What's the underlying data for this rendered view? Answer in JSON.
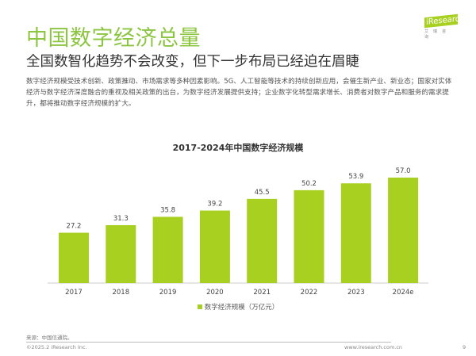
{
  "header": {
    "title": "中国数字经济总量",
    "subtitle": "全国数智化趋势不会改变，但下一步布局已经迫在眉睫",
    "description": "数字经济规模受技术创新、政策推动、市场需求等多种因素影响。5G、人工智能等技术的持续创新应用，会催生新产业、新业态；国家对实体经济与数字经济深度融合的重视及相关政策的出台，为数字经济发展提供支持；企业数字化转型需求增长、消费者对数字产品和服务的需求提升，都将推动数字经济规模的扩大。"
  },
  "logo": {
    "text": "iResearch",
    "cn": "艾瑞咨询"
  },
  "chart_data": {
    "type": "bar",
    "title": "2017-2024年中国数字经济规模",
    "categories": [
      "2017",
      "2018",
      "2019",
      "2020",
      "2021",
      "2022",
      "2023",
      "2024e"
    ],
    "series": [
      {
        "name": "数字经济规模（万亿元）",
        "values": [
          27.2,
          31.3,
          35.8,
          39.2,
          45.5,
          50.2,
          53.9,
          57.0
        ],
        "color": "#a8d020"
      }
    ],
    "labels": [
      "27.2",
      "31.3",
      "35.8",
      "39.2",
      "45.5",
      "50.2",
      "53.9",
      "57.0"
    ],
    "ylim": [
      0,
      65
    ],
    "grid": false,
    "legend": "bottom"
  },
  "footer": {
    "source": "来源：中国信通院。",
    "copyright": "©2025.2 iResearch Inc.",
    "url": "www.iresearch.com.cn",
    "page": "9"
  }
}
